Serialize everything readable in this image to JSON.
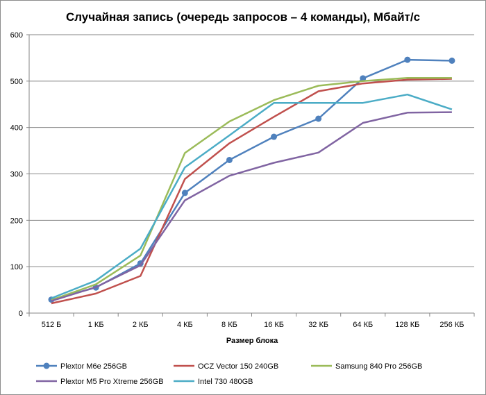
{
  "chart_data": {
    "type": "line",
    "title": "Случайная запись (очередь запросов – 4 команды), Мбайт/с",
    "xlabel": "Размер блока",
    "ylabel": "",
    "ylim": [
      0,
      600
    ],
    "yticks": [
      "0",
      "100",
      "200",
      "300",
      "400",
      "500",
      "600"
    ],
    "grid": true,
    "legend_position": "bottom",
    "categories": [
      "512 Б",
      "1 КБ",
      "2 КБ",
      "4 КБ",
      "8 КБ",
      "16 КБ",
      "32 КБ",
      "64 КБ",
      "128 КБ",
      "256 КБ"
    ],
    "series": [
      {
        "name": "Plextor M6e 256GB",
        "color": "#4f81bd",
        "markers": true,
        "values": [
          29,
          55,
          107,
          259,
          330,
          380,
          419,
          506,
          546,
          544
        ]
      },
      {
        "name": "OCZ Vector 150 240GB",
        "color": "#c0504d",
        "markers": false,
        "values": [
          21,
          42,
          80,
          289,
          366,
          423,
          478,
          495,
          503,
          505
        ]
      },
      {
        "name": "Samsung 840 Pro 256GB",
        "color": "#9bbb59",
        "markers": false,
        "values": [
          28,
          62,
          124,
          345,
          413,
          459,
          490,
          500,
          507,
          507
        ]
      },
      {
        "name": "Plextor M5 Pro Xtreme 256GB",
        "color": "#8064a2",
        "markers": false,
        "values": [
          26,
          56,
          103,
          243,
          296,
          324,
          346,
          410,
          432,
          433
        ]
      },
      {
        "name": "Intel 730 480GB",
        "color": "#4bacc6",
        "markers": false,
        "values": [
          32,
          70,
          139,
          314,
          383,
          453,
          453,
          453,
          471,
          439
        ]
      }
    ]
  }
}
